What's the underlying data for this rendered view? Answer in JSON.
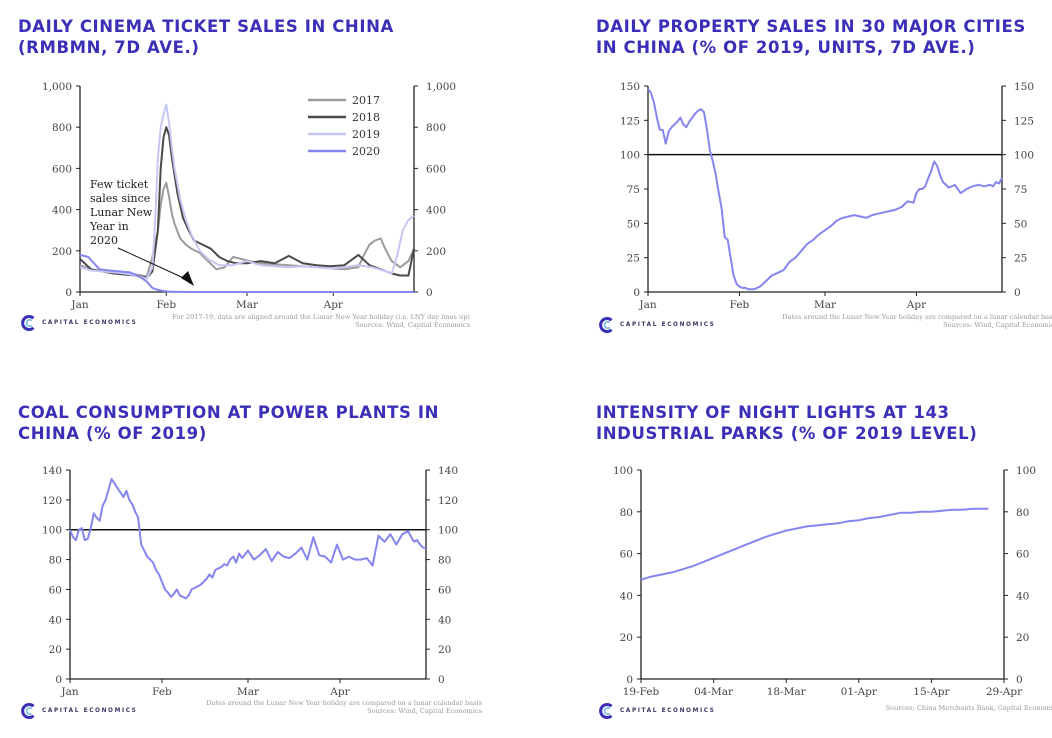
{
  "brand": {
    "name": "CAPITAL ECONOMICS",
    "accent": "#3b2fb8",
    "line_color": "#8585f0",
    "logo_icon": "capital-economics-logo"
  },
  "panels": [
    {
      "title_lines": [
        "DAILY CINEMA TICKET SALES IN CHINA",
        "(RMBMN, 7D AVE.)"
      ],
      "footnote_lines": [
        "For 2017-19, data are aligned around the Lunar New Year holiday (i.e. LNY day lines up)",
        "Sources: Wind, Capital Economics"
      ],
      "annotation_lines": [
        "Few ticket",
        "sales since",
        "Lunar New",
        "Year in",
        "2020"
      ]
    },
    {
      "title_lines": [
        "DAILY PROPERTY SALES IN 30 MAJOR CITIES",
        "IN CHINA (% OF 2019, UNITS, 7D AVE.)"
      ],
      "footnote_lines": [
        "Dates around the Lunar New Year holiday are compared on a lunar calendar basis",
        "Sources: Wind, Capital Economics"
      ]
    },
    {
      "title_lines": [
        "COAL CONSUMPTION AT POWER PLANTS IN",
        "CHINA (% OF 2019)"
      ],
      "footnote_lines": [
        "Dates around the Lunar New Year holiday are compared on a lunar calendar basis",
        "Sources: Wind, Capital Economics"
      ]
    },
    {
      "title_lines": [
        "INTENSITY OF NIGHT LIGHTS AT 143",
        "INDUSTRIAL PARKS (% OF 2019 LEVEL)"
      ],
      "footnote_lines": [
        "Sources: China Merchants Bank, Capital Economics"
      ]
    }
  ],
  "chart_data": [
    {
      "type": "line",
      "title": "Daily cinema ticket sales in China (RMBmn, 7d ave.)",
      "x_range": [
        0,
        120
      ],
      "x_ticks": [
        {
          "x": 0,
          "label": "Jan"
        },
        {
          "x": 31,
          "label": "Feb"
        },
        {
          "x": 60,
          "label": "Mar"
        },
        {
          "x": 91,
          "label": "Apr"
        }
      ],
      "ylim": [
        0,
        1000
      ],
      "y_ticks": [
        0,
        200,
        400,
        600,
        800,
        1000
      ],
      "y_tick_labels": [
        "0",
        "200",
        "400",
        "600",
        "800",
        "1,000"
      ],
      "right_axis": true,
      "legend_position": "top-right",
      "series": [
        {
          "name": "2017",
          "color": "#9c9c9c",
          "x": [
            0,
            4,
            8,
            12,
            16,
            20,
            24,
            26,
            28,
            29,
            30,
            31,
            32,
            33,
            34,
            36,
            38,
            40,
            43,
            46,
            49,
            52,
            55,
            58,
            61,
            65,
            70,
            75,
            80,
            85,
            90,
            95,
            100,
            102,
            104,
            106,
            108,
            110,
            112,
            115,
            118,
            120
          ],
          "values": [
            130,
            110,
            100,
            95,
            90,
            85,
            75,
            170,
            300,
            420,
            500,
            530,
            460,
            380,
            330,
            260,
            230,
            210,
            190,
            150,
            110,
            120,
            170,
            160,
            150,
            140,
            135,
            130,
            125,
            120,
            115,
            110,
            120,
            180,
            230,
            250,
            260,
            200,
            150,
            120,
            150,
            210
          ]
        },
        {
          "name": "2018",
          "color": "#4a4a4a",
          "x": [
            0,
            4,
            8,
            12,
            16,
            20,
            24,
            26,
            28,
            29,
            30,
            31,
            32,
            33,
            35,
            37,
            39,
            41,
            44,
            47,
            50,
            53,
            56,
            60,
            65,
            70,
            75,
            80,
            85,
            90,
            95,
            100,
            104,
            108,
            112,
            115,
            118,
            120
          ],
          "values": [
            160,
            110,
            100,
            90,
            85,
            80,
            70,
            100,
            300,
            600,
            750,
            800,
            760,
            650,
            480,
            360,
            300,
            250,
            230,
            210,
            170,
            150,
            140,
            140,
            150,
            140,
            175,
            140,
            130,
            125,
            130,
            180,
            130,
            110,
            90,
            80,
            80,
            210
          ]
        },
        {
          "name": "2019",
          "color": "#c6c6f2",
          "x": [
            0,
            4,
            8,
            12,
            16,
            20,
            24,
            26,
            27,
            28,
            29,
            30,
            31,
            32,
            33,
            34,
            36,
            38,
            40,
            43,
            46,
            50,
            55,
            60,
            65,
            70,
            75,
            80,
            85,
            90,
            95,
            100,
            105,
            110,
            112,
            114,
            116,
            118,
            120
          ],
          "values": [
            120,
            105,
            100,
            95,
            90,
            80,
            65,
            120,
            350,
            650,
            800,
            860,
            910,
            820,
            700,
            600,
            450,
            350,
            280,
            200,
            160,
            130,
            130,
            150,
            130,
            125,
            120,
            125,
            120,
            115,
            120,
            130,
            120,
            100,
            90,
            180,
            300,
            350,
            370
          ]
        },
        {
          "name": "2020",
          "color": "#8585f0",
          "x": [
            0,
            3,
            5,
            7,
            10,
            14,
            18,
            22,
            24,
            26,
            28,
            30,
            32,
            34,
            40,
            50,
            60,
            70,
            80,
            90,
            100,
            110,
            120
          ],
          "values": [
            180,
            170,
            140,
            110,
            105,
            100,
            95,
            70,
            50,
            20,
            10,
            5,
            2,
            1,
            0,
            0,
            0,
            0,
            0,
            0,
            0,
            0,
            0
          ]
        }
      ]
    },
    {
      "type": "line",
      "title": "Daily property sales in 30 major cities in China (% of 2019, units, 7d ave.)",
      "x_range": [
        0,
        120
      ],
      "x_ticks": [
        {
          "x": 0,
          "label": "Jan"
        },
        {
          "x": 31,
          "label": "Feb"
        },
        {
          "x": 60,
          "label": "Mar"
        },
        {
          "x": 91,
          "label": "Apr"
        }
      ],
      "ylim": [
        0,
        150
      ],
      "y_ticks": [
        0,
        25,
        50,
        75,
        100,
        125,
        150
      ],
      "reference_line": 100,
      "right_axis": true,
      "series": [
        {
          "name": "Property sales",
          "color": "#8585f0",
          "x": [
            0,
            1,
            2,
            3,
            4,
            5,
            6,
            7,
            8,
            9,
            10,
            11,
            12,
            13,
            14,
            15,
            16,
            17,
            18,
            19,
            20,
            21,
            22,
            23,
            24,
            25,
            26,
            27,
            28,
            29,
            30,
            31,
            32,
            33,
            34,
            35,
            36,
            37,
            38,
            39,
            40,
            42,
            44,
            46,
            48,
            50,
            52,
            54,
            56,
            58,
            60,
            62,
            64,
            66,
            68,
            70,
            72,
            74,
            76,
            78,
            80,
            82,
            84,
            86,
            88,
            90,
            91,
            92,
            93,
            94,
            95,
            96,
            97,
            98,
            99,
            100,
            102,
            104,
            106,
            108,
            110,
            112,
            114,
            116,
            117,
            118,
            119,
            120
          ],
          "values": [
            148,
            145,
            138,
            127,
            118,
            118,
            108,
            117,
            120,
            122,
            124,
            127,
            122,
            120,
            124,
            127,
            130,
            132,
            133,
            131,
            118,
            103,
            95,
            85,
            72,
            60,
            40,
            38,
            25,
            12,
            6,
            4,
            3,
            3,
            2,
            2,
            2,
            3,
            4,
            6,
            8,
            12,
            14,
            16,
            22,
            25,
            30,
            35,
            38,
            42,
            45,
            48,
            52,
            54,
            55,
            56,
            55,
            54,
            56,
            57,
            58,
            59,
            60,
            62,
            66,
            65,
            72,
            75,
            75,
            77,
            83,
            88,
            95,
            92,
            85,
            80,
            76,
            78,
            72,
            75,
            77,
            78,
            77,
            78,
            77,
            80,
            79,
            83
          ]
        }
      ]
    },
    {
      "type": "line",
      "title": "Coal consumption at power plants in China (% of 2019)",
      "x_range": [
        0,
        120
      ],
      "x_ticks": [
        {
          "x": 0,
          "label": "Jan"
        },
        {
          "x": 31,
          "label": "Feb"
        },
        {
          "x": 60,
          "label": "Mar"
        },
        {
          "x": 91,
          "label": "Apr"
        }
      ],
      "ylim": [
        0,
        140
      ],
      "y_ticks": [
        0,
        20,
        40,
        60,
        80,
        100,
        120,
        140
      ],
      "reference_line": 100,
      "right_axis": true,
      "series": [
        {
          "name": "Coal consumption",
          "color": "#8585f0",
          "x": [
            0,
            1,
            2,
            3,
            4,
            5,
            6,
            7,
            8,
            9,
            10,
            11,
            12,
            13,
            14,
            15,
            16,
            17,
            18,
            19,
            20,
            21,
            22,
            23,
            24,
            25,
            26,
            27,
            28,
            29,
            30,
            31,
            32,
            33,
            34,
            35,
            36,
            37,
            38,
            39,
            40,
            41,
            42,
            43,
            44,
            45,
            46,
            47,
            48,
            49,
            50,
            51,
            52,
            53,
            54,
            55,
            56,
            57,
            58,
            60,
            62,
            64,
            66,
            68,
            70,
            72,
            74,
            76,
            78,
            80,
            82,
            84,
            86,
            88,
            90,
            92,
            94,
            96,
            98,
            100,
            102,
            104,
            106,
            108,
            110,
            112,
            114,
            115,
            116,
            117,
            118,
            119,
            120
          ],
          "values": [
            100,
            95,
            93,
            100,
            101,
            93,
            94,
            101,
            111,
            108,
            106,
            116,
            120,
            127,
            134,
            131,
            128,
            125,
            122,
            126,
            120,
            117,
            112,
            108,
            90,
            86,
            82,
            80,
            78,
            73,
            70,
            65,
            60,
            58,
            55,
            57,
            60,
            56,
            55,
            54,
            56,
            60,
            61,
            62,
            63,
            65,
            67,
            70,
            68,
            73,
            74,
            75,
            77,
            76,
            80,
            82,
            78,
            84,
            81,
            86,
            80,
            83,
            87,
            79,
            85,
            82,
            81,
            84,
            88,
            80,
            95,
            83,
            82,
            78,
            90,
            80,
            82,
            80,
            80,
            81,
            76,
            96,
            92,
            97,
            90,
            97,
            99,
            95,
            92,
            93,
            90,
            88,
            88
          ]
        }
      ]
    },
    {
      "type": "line",
      "title": "Intensity of night lights at 143 industrial parks (% of 2019 level)",
      "x_range": [
        0,
        70
      ],
      "x_ticks": [
        {
          "x": 0,
          "label": "19-Feb"
        },
        {
          "x": 14,
          "label": "04-Mar"
        },
        {
          "x": 28,
          "label": "18-Mar"
        },
        {
          "x": 42,
          "label": "01-Apr"
        },
        {
          "x": 56,
          "label": "15-Apr"
        },
        {
          "x": 70,
          "label": "29-Apr"
        }
      ],
      "ylim": [
        0,
        100
      ],
      "y_ticks": [
        0,
        20,
        40,
        60,
        80,
        100
      ],
      "right_axis": true,
      "series": [
        {
          "name": "Night lights",
          "color": "#8585f0",
          "x": [
            0,
            2,
            4,
            6,
            8,
            10,
            12,
            14,
            16,
            18,
            20,
            22,
            24,
            26,
            28,
            30,
            32,
            34,
            36,
            38,
            40,
            42,
            44,
            46,
            48,
            50,
            52,
            54,
            56,
            58,
            60,
            62,
            64,
            66,
            67
          ],
          "values": [
            47.5,
            49,
            50,
            51,
            52.5,
            54,
            56,
            58,
            60,
            62,
            64,
            66,
            68,
            69.5,
            71,
            72,
            73,
            73.5,
            74,
            74.5,
            75.5,
            76,
            77,
            77.5,
            78.5,
            79.5,
            79.5,
            80,
            80,
            80.5,
            81,
            81,
            81.5,
            81.5,
            81.5
          ]
        }
      ]
    }
  ]
}
